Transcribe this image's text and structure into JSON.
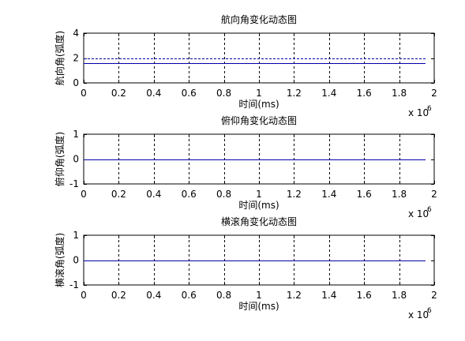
{
  "figure": {
    "background": "#ffffff",
    "axes_color": "#000000",
    "grid_color": "#000000",
    "line_color": "#0000aa",
    "reference_line_color": "#0000aa"
  },
  "chart_data": [
    {
      "type": "line",
      "title": "航向角变化动态图",
      "xlabel": "时间(ms)",
      "ylabel": "航向角(弧度)",
      "xlim": [
        0,
        2000000
      ],
      "ylim": [
        0,
        4
      ],
      "xticks": [
        0,
        200000,
        400000,
        600000,
        800000,
        1000000,
        1200000,
        1400000,
        1600000,
        1800000,
        2000000
      ],
      "xtick_labels": [
        "0",
        "0.2",
        "0.4",
        "0.6",
        "0.8",
        "1",
        "1.2",
        "1.4",
        "1.6",
        "1.8",
        "2"
      ],
      "yticks": [
        0,
        2,
        4
      ],
      "ytick_labels": [
        "0",
        "2",
        "4"
      ],
      "x_multiplier": {
        "base": "x 10",
        "exponent": "6"
      },
      "grid": "x-dashed",
      "series": [
        {
          "x": [
            0,
            1950000
          ],
          "y": [
            1.57,
            1.57
          ]
        },
        {
          "x": [
            0,
            1950000
          ],
          "y": [
            1.96,
            1.96
          ],
          "style": "dashed"
        }
      ]
    },
    {
      "type": "line",
      "title": "俯仰角变化动态图",
      "xlabel": "时间(ms)",
      "ylabel": "俯仰角(弧度)",
      "xlim": [
        0,
        2000000
      ],
      "ylim": [
        -1,
        1
      ],
      "xticks": [
        0,
        200000,
        400000,
        600000,
        800000,
        1000000,
        1200000,
        1400000,
        1600000,
        1800000,
        2000000
      ],
      "xtick_labels": [
        "0",
        "0.2",
        "0.4",
        "0.6",
        "0.8",
        "1",
        "1.2",
        "1.4",
        "1.6",
        "1.8",
        "2"
      ],
      "yticks": [
        -1,
        0,
        1
      ],
      "ytick_labels": [
        "-1",
        "0",
        "1"
      ],
      "x_multiplier": {
        "base": "x 10",
        "exponent": "6"
      },
      "grid": "x-dashed",
      "series": [
        {
          "x": [
            0,
            1950000
          ],
          "y": [
            0,
            0
          ]
        }
      ]
    },
    {
      "type": "line",
      "title": "横滚角变化动态图",
      "xlabel": "时间(ms)",
      "ylabel": "横滚角(弧度)",
      "xlim": [
        0,
        2000000
      ],
      "ylim": [
        -1,
        1
      ],
      "xticks": [
        0,
        200000,
        400000,
        600000,
        800000,
        1000000,
        1200000,
        1400000,
        1600000,
        1800000,
        2000000
      ],
      "xtick_labels": [
        "0",
        "0.2",
        "0.4",
        "0.6",
        "0.8",
        "1",
        "1.2",
        "1.4",
        "1.6",
        "1.8",
        "2"
      ],
      "yticks": [
        -1,
        0,
        1
      ],
      "ytick_labels": [
        "-1",
        "0",
        "1"
      ],
      "x_multiplier": {
        "base": "x 10",
        "exponent": "6"
      },
      "grid": "x-dashed",
      "series": [
        {
          "x": [
            0,
            1950000
          ],
          "y": [
            0,
            0
          ]
        }
      ]
    }
  ]
}
